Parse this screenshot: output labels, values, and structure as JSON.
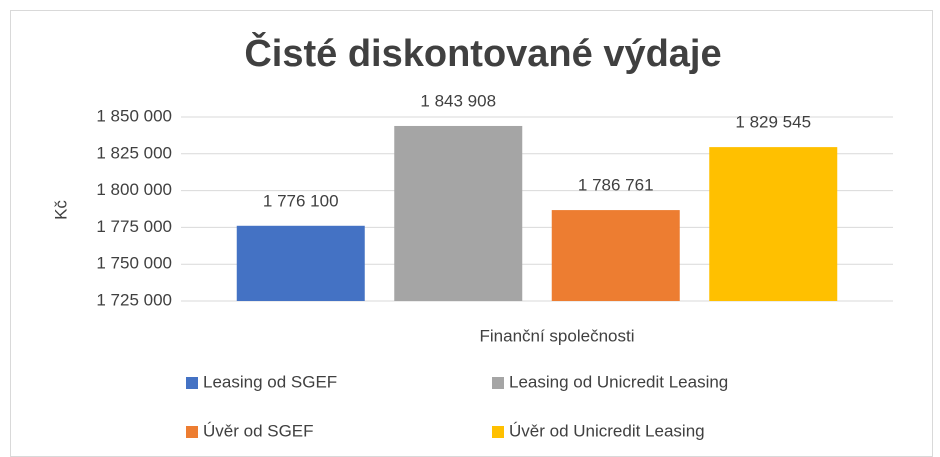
{
  "chart_data": {
    "type": "bar",
    "title": "Čisté diskontované výdaje",
    "ylabel": "Kč",
    "xlabel": "Finanční společnosti",
    "series": [
      {
        "name": "Leasing od SGEF",
        "color": "#4472c4",
        "values": [
          1776100
        ],
        "value_labels": [
          "1 776 100"
        ]
      },
      {
        "name": "Leasing od Unicredit Leasing",
        "color": "#a5a5a5",
        "values": [
          1843908
        ],
        "value_labels": [
          "1 843 908"
        ]
      },
      {
        "name": "Úvěr od SGEF",
        "color": "#ed7d31",
        "values": [
          1786761
        ],
        "value_labels": [
          "1 786 761"
        ]
      },
      {
        "name": "Úvěr od Unicredit Leasing",
        "color": "#ffc000",
        "values": [
          1829545
        ],
        "value_labels": [
          "1 829 545"
        ]
      }
    ],
    "ylim": [
      1725000,
      1850000
    ],
    "yticks": [
      {
        "value": 1725000,
        "label": "1 725 000"
      },
      {
        "value": 1750000,
        "label": "1 750 000"
      },
      {
        "value": 1775000,
        "label": "1 775 000"
      },
      {
        "value": 1800000,
        "label": "1 800 000"
      },
      {
        "value": 1825000,
        "label": "1 825 000"
      },
      {
        "value": 1850000,
        "label": "1 850 000"
      }
    ],
    "grid": true,
    "legend": "bottom"
  }
}
